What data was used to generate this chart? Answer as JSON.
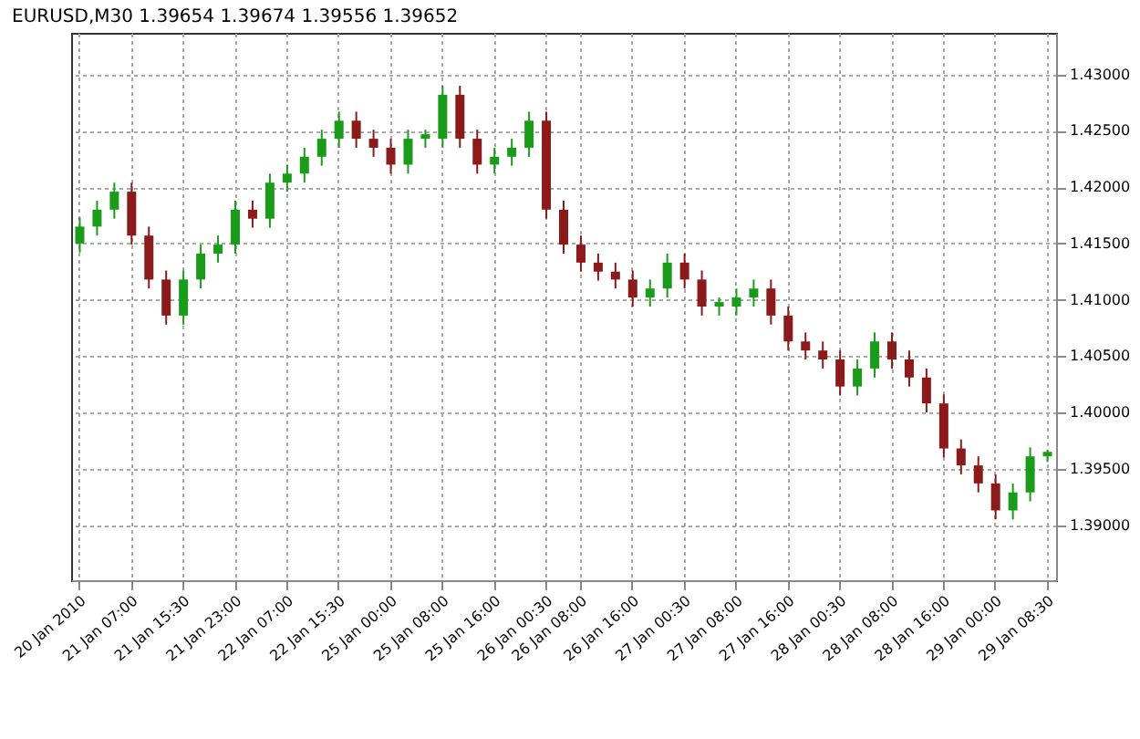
{
  "chart_data": {
    "type": "candlestick",
    "title": "EURUSD,M30 1.39654 1.39674 1.39556 1.39652",
    "categories": [
      "20 Jan 2010",
      null,
      null,
      "21 Jan 07:00",
      null,
      null,
      "21 Jan 15:30",
      null,
      null,
      "21 Jan 23:00",
      null,
      null,
      "22 Jan 07:00",
      null,
      null,
      "22 Jan 15:30",
      null,
      null,
      "25 Jan 00:00",
      null,
      null,
      "25 Jan 08:00",
      null,
      null,
      "25 Jan 16:00",
      null,
      null,
      "26 Jan 00:30",
      null,
      "26 Jan 08:00",
      null,
      null,
      "26 Jan 16:00",
      null,
      null,
      "27 Jan 00:30",
      null,
      null,
      "27 Jan 08:00",
      null,
      null,
      "27 Jan 16:00",
      null,
      null,
      "28 Jan 00:30",
      null,
      null,
      "28 Jan 08:00",
      null,
      null,
      "28 Jan 16:00",
      null,
      null,
      "29 Jan 00:00",
      null,
      null,
      "29 Jan 08:30"
    ],
    "ohlc": [
      [
        1.415,
        1.4173,
        1.4142,
        1.4165
      ],
      [
        1.4165,
        1.4188,
        1.4157,
        1.418
      ],
      [
        1.418,
        1.4204,
        1.4172,
        1.4196
      ],
      [
        1.4196,
        1.4204,
        1.4149,
        1.4157
      ],
      [
        1.4157,
        1.4165,
        1.411,
        1.4118
      ],
      [
        1.4118,
        1.4126,
        1.4078,
        1.4086
      ],
      [
        1.4086,
        1.4126,
        1.4078,
        1.4118
      ],
      [
        1.4118,
        1.4149,
        1.411,
        1.4141
      ],
      [
        1.4141,
        1.4157,
        1.4133,
        1.4149
      ],
      [
        1.4149,
        1.4188,
        1.4141,
        1.418
      ],
      [
        1.418,
        1.4188,
        1.4164,
        1.4172
      ],
      [
        1.4172,
        1.4212,
        1.4164,
        1.4204
      ],
      [
        1.4204,
        1.422,
        1.4196,
        1.4212
      ],
      [
        1.4212,
        1.4235,
        1.4204,
        1.4227
      ],
      [
        1.4227,
        1.4251,
        1.4219,
        1.4243
      ],
      [
        1.4243,
        1.4267,
        1.4235,
        1.4259
      ],
      [
        1.4259,
        1.4267,
        1.4235,
        1.4243
      ],
      [
        1.4243,
        1.4251,
        1.4227,
        1.4235
      ],
      [
        1.4235,
        1.4243,
        1.4212,
        1.422
      ],
      [
        1.422,
        1.4251,
        1.4212,
        1.4243
      ],
      [
        1.4243,
        1.4251,
        1.4235,
        1.4247
      ],
      [
        1.4243,
        1.429,
        1.4235,
        1.4282
      ],
      [
        1.4282,
        1.429,
        1.4235,
        1.4243
      ],
      [
        1.4243,
        1.4251,
        1.4212,
        1.422
      ],
      [
        1.422,
        1.4235,
        1.4212,
        1.4227
      ],
      [
        1.4227,
        1.4243,
        1.4219,
        1.4235
      ],
      [
        1.4235,
        1.4267,
        1.4227,
        1.4259
      ],
      [
        1.4259,
        1.4267,
        1.4172,
        1.418
      ],
      [
        1.418,
        1.4188,
        1.4141,
        1.4149
      ],
      [
        1.4149,
        1.4157,
        1.4125,
        1.4133
      ],
      [
        1.4133,
        1.4141,
        1.4117,
        1.4125
      ],
      [
        1.4125,
        1.4133,
        1.411,
        1.4118
      ],
      [
        1.4118,
        1.4126,
        1.4094,
        1.4102
      ],
      [
        1.4102,
        1.4118,
        1.4094,
        1.411
      ],
      [
        1.411,
        1.4141,
        1.4102,
        1.4133
      ],
      [
        1.4133,
        1.4141,
        1.411,
        1.4118
      ],
      [
        1.4118,
        1.4126,
        1.4086,
        1.4094
      ],
      [
        1.4094,
        1.4102,
        1.4086,
        1.4098
      ],
      [
        1.4094,
        1.411,
        1.4086,
        1.4102
      ],
      [
        1.4102,
        1.4118,
        1.4094,
        1.411
      ],
      [
        1.411,
        1.4118,
        1.4078,
        1.4086
      ],
      [
        1.4086,
        1.4094,
        1.4055,
        1.4063
      ],
      [
        1.4063,
        1.4071,
        1.4047,
        1.4055
      ],
      [
        1.4055,
        1.4063,
        1.4039,
        1.4047
      ],
      [
        1.4047,
        1.4055,
        1.4015,
        1.4023
      ],
      [
        1.4023,
        1.4047,
        1.4015,
        1.4039
      ],
      [
        1.4039,
        1.4071,
        1.4031,
        1.4063
      ],
      [
        1.4063,
        1.4071,
        1.4039,
        1.4047
      ],
      [
        1.4047,
        1.4055,
        1.4023,
        1.4031
      ],
      [
        1.4031,
        1.4039,
        1.4,
        1.4008
      ],
      [
        1.4008,
        1.4016,
        1.396,
        1.3968
      ],
      [
        1.3968,
        1.3976,
        1.3945,
        1.3953
      ],
      [
        1.3953,
        1.3961,
        1.3929,
        1.3937
      ],
      [
        1.3937,
        1.3945,
        1.3905,
        1.3913
      ],
      [
        1.3913,
        1.3937,
        1.3905,
        1.3929
      ],
      [
        1.3929,
        1.3969,
        1.3921,
        1.3961
      ],
      [
        1.3961,
        1.3967,
        1.3956,
        1.3965
      ]
    ],
    "ylim": [
      1.3851,
      1.4337
    ],
    "yticks": [
      {
        "value": 1.39,
        "label": "1.39000"
      },
      {
        "value": 1.395,
        "label": "1.39500"
      },
      {
        "value": 1.4,
        "label": "1.40000"
      },
      {
        "value": 1.405,
        "label": "1.40500"
      },
      {
        "value": 1.41,
        "label": "1.41000"
      },
      {
        "value": 1.415,
        "label": "1.41500"
      },
      {
        "value": 1.42,
        "label": "1.42000"
      },
      {
        "value": 1.425,
        "label": "1.42500"
      },
      {
        "value": 1.43,
        "label": "1.43000"
      }
    ],
    "grid": true
  }
}
